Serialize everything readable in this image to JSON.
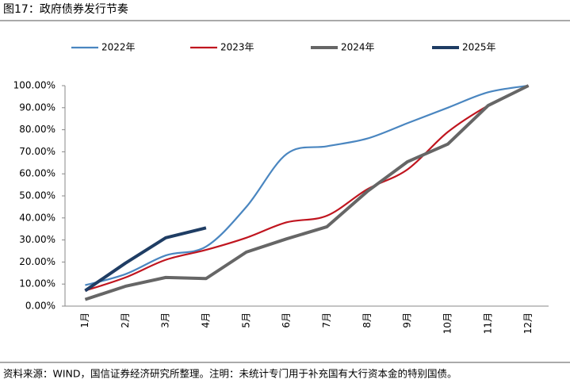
{
  "chart_data": {
    "type": "line",
    "title": "图17：政府债券发行节奏",
    "footnote": "资料来源：WIND，国信证券经济研究所整理。注明：未统计专门用于补充国有大行资本金的特别国债。",
    "categories": [
      "1月",
      "2月",
      "3月",
      "4月",
      "5月",
      "6月",
      "7月",
      "8月",
      "9月",
      "10月",
      "11月",
      "12月"
    ],
    "series": [
      {
        "name": "2022年",
        "color": "#4a86c0",
        "smooth": true,
        "values": [
          9.5,
          14.5,
          23,
          27,
          45,
          69,
          72.5,
          76,
          83,
          90,
          97,
          100
        ]
      },
      {
        "name": "2023年",
        "color": "#c0151f",
        "smooth": true,
        "values": [
          7,
          13,
          21,
          25.5,
          31,
          38,
          41,
          53,
          62,
          79,
          91,
          100
        ]
      },
      {
        "name": "2024年",
        "color": "#666666",
        "values": [
          3,
          9,
          13,
          12.5,
          24.5,
          30.5,
          36,
          52,
          65.5,
          73.5,
          91,
          100
        ]
      },
      {
        "name": "2025年",
        "color": "#1f3d64",
        "values": [
          7,
          19.5,
          31,
          35.5,
          null,
          null,
          null,
          null,
          null,
          null,
          null,
          null
        ]
      }
    ],
    "ylim": [
      0,
      100
    ],
    "yticks": [
      {
        "value": 0,
        "label": "0.00%"
      },
      {
        "value": 10,
        "label": "10.00%"
      },
      {
        "value": 20,
        "label": "20.00%"
      },
      {
        "value": 30,
        "label": "30.00%"
      },
      {
        "value": 40,
        "label": "40.00%"
      },
      {
        "value": 50,
        "label": "50.00%"
      },
      {
        "value": 60,
        "label": "60.00%"
      },
      {
        "value": 70,
        "label": "70.00%"
      },
      {
        "value": 80,
        "label": "80.00%"
      },
      {
        "value": 90,
        "label": "90.00%"
      },
      {
        "value": 100,
        "label": "100.00%"
      }
    ],
    "legend": "top"
  }
}
